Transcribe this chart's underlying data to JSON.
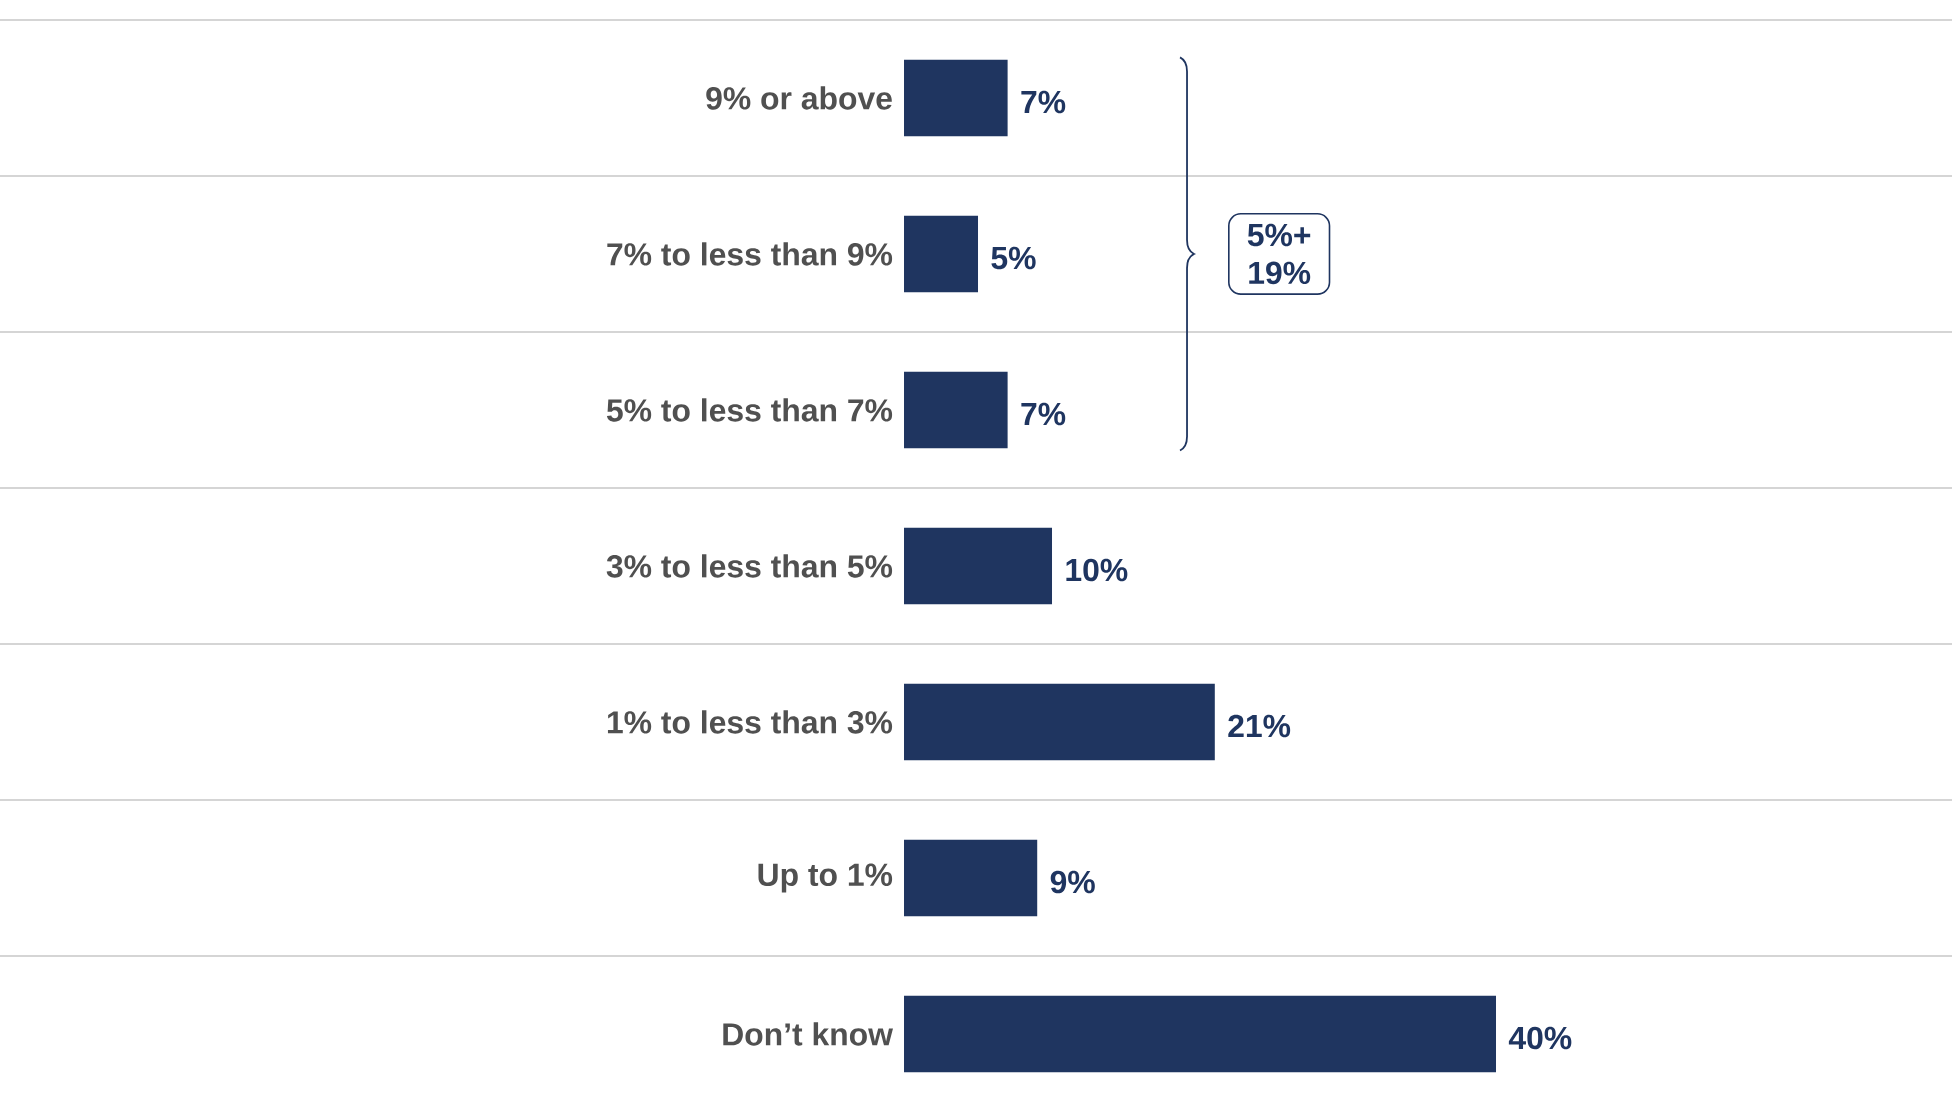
{
  "chart_data": {
    "type": "bar",
    "orientation": "horizontal",
    "categories": [
      "9% or above",
      "7% to less than 9%",
      "5% to less than 7%",
      "3% to less than 5%",
      "1% to less than 3%",
      "Up to 1%",
      "Don’t know"
    ],
    "values": [
      7,
      5,
      7,
      10,
      21,
      9,
      40
    ],
    "value_labels": [
      "7%",
      "5%",
      "7%",
      "10%",
      "21%",
      "9%",
      "40%"
    ],
    "color": "#1f3560",
    "grid": "y",
    "annotations": [
      "5%+",
      "19%"
    ]
  }
}
